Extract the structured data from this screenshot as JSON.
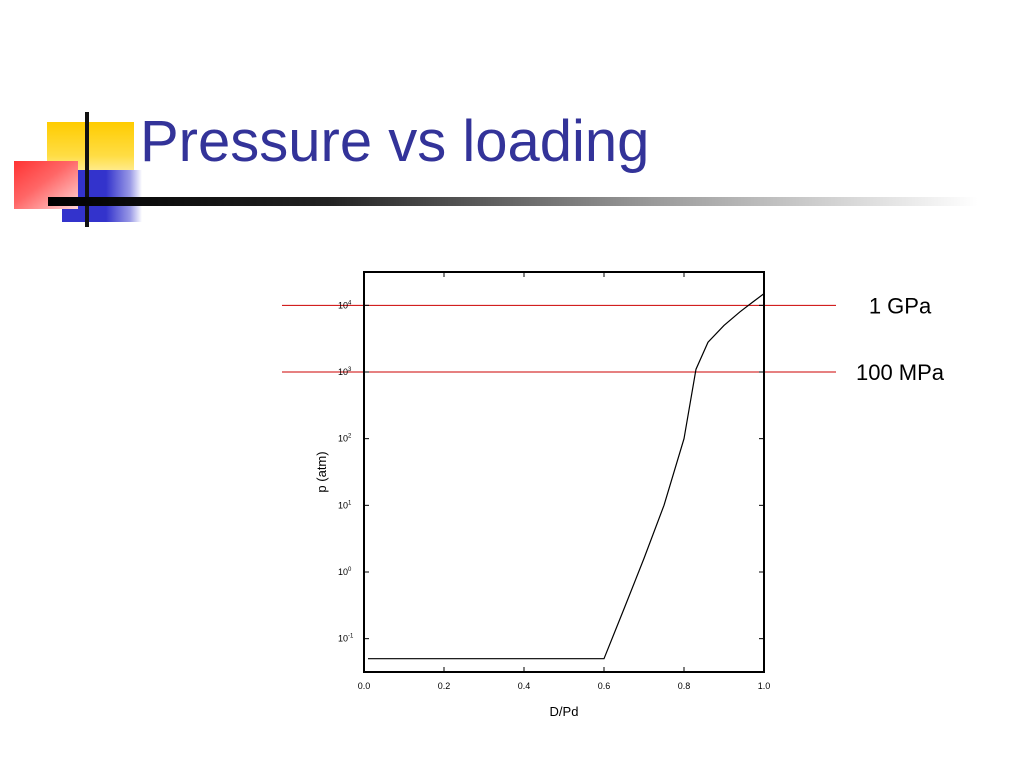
{
  "slide": {
    "title": "Pressure vs loading"
  },
  "theme": {
    "title_color": "#333399",
    "deco_yellow": "#FFCC00",
    "deco_red": "#FF3333",
    "deco_blue": "#3333CC",
    "reference_line_color": "#CC0000",
    "curve_color": "#000000"
  },
  "chart_data": {
    "type": "line",
    "xlabel": "D/Pd",
    "ylabel": "p (atm)",
    "xlim": [
      0.0,
      1.0
    ],
    "ylim_log10": [
      -1.5,
      4.5
    ],
    "y_scale": "log",
    "x_ticks": [
      "0.0",
      "0.2",
      "0.4",
      "0.6",
      "0.8",
      "1.0"
    ],
    "x_tick_values": [
      0.0,
      0.2,
      0.4,
      0.6,
      0.8,
      1.0
    ],
    "y_ticks": [
      {
        "base": "10",
        "exp": "4",
        "exp_value": 4
      },
      {
        "base": "10",
        "exp": "3",
        "exp_value": 3
      },
      {
        "base": "10",
        "exp": "2",
        "exp_value": 2
      },
      {
        "base": "10",
        "exp": "1",
        "exp_value": 1
      },
      {
        "base": "10",
        "exp": "0",
        "exp_value": 0
      },
      {
        "base": "10",
        "exp": "-1",
        "exp_value": -1
      }
    ],
    "series": [
      {
        "x": [
          0.01,
          0.6,
          0.65,
          0.7,
          0.75,
          0.8,
          0.83,
          0.86,
          0.9,
          0.94,
          0.97,
          1.0
        ],
        "y": [
          0.05,
          0.05,
          0.28,
          1.6,
          10,
          100,
          1100,
          2800,
          5000,
          8000,
          11000,
          15000
        ]
      }
    ],
    "reference_lines": [
      {
        "label": "1 GPa",
        "value": 10000
      },
      {
        "label": "100 MPa",
        "value": 1000
      }
    ]
  }
}
